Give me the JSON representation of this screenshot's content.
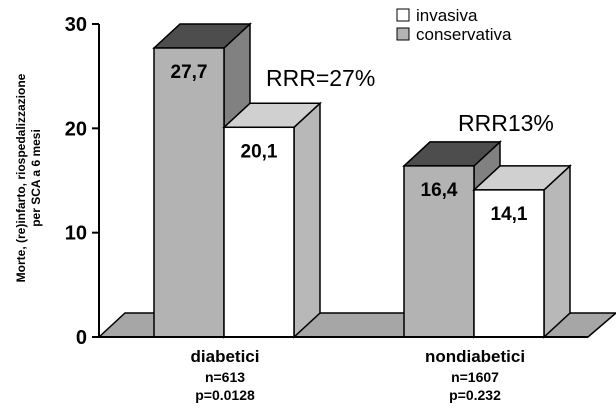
{
  "chart_data": {
    "type": "bar",
    "title": "",
    "ylabel": [
      "Morte, (re)infarto, riospedalizzazione",
      "per SCA a 6 mesi"
    ],
    "ylim": [
      0,
      30
    ],
    "yticks": [
      "0",
      "10",
      "20",
      "30"
    ],
    "categories": [
      {
        "label": "diabetici",
        "n": "n=613",
        "p": "p=0.0128"
      },
      {
        "label": "nondiabetici",
        "n": "n=1607",
        "p": "p=0.232"
      }
    ],
    "series": [
      {
        "name": "invasiva",
        "values": [
          20.1,
          14.1
        ],
        "labels": [
          "20,1",
          "14,1"
        ],
        "color": "#ffffff"
      },
      {
        "name": "conservativa",
        "values": [
          27.7,
          16.4
        ],
        "labels": [
          "27,7",
          "16,4"
        ],
        "color": "#b3b3b3"
      }
    ],
    "annotations": [
      "RRR=27%",
      "RRR13%"
    ],
    "legend_position": "top-right",
    "grid": false
  }
}
